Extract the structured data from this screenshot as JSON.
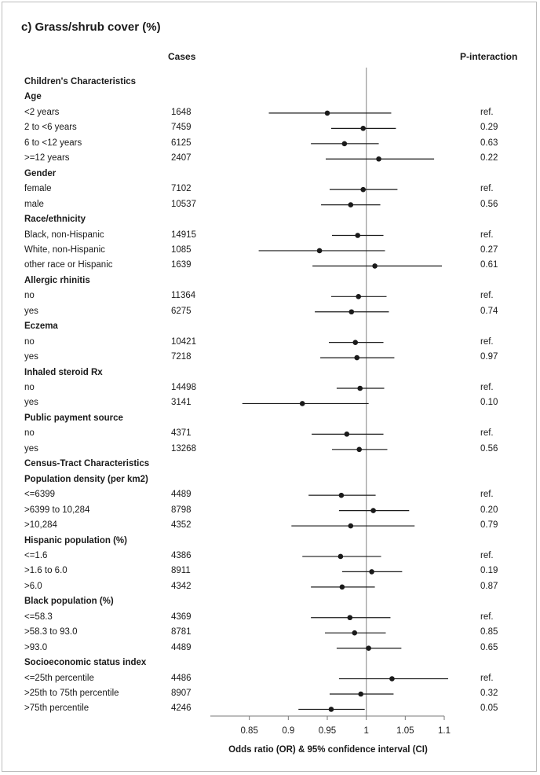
{
  "chart_data": {
    "type": "forest",
    "title": "c) Grass/shrub cover (%)",
    "column_headers": {
      "cases": "Cases",
      "p_interaction": "P-interaction"
    },
    "xlabel": "Odds ratio (OR) & 95% confidence interval (CI)",
    "xlim": [
      0.8,
      1.1
    ],
    "reference_line": 1,
    "xticks": [
      0.85,
      0.9,
      0.95,
      1,
      1.05,
      1.1
    ],
    "xtick_labels": [
      "0.85",
      "0.9",
      "0.95",
      "1",
      "1.05",
      "1.1"
    ],
    "rows": [
      {
        "label": "Children's Characteristics",
        "kind": "section"
      },
      {
        "label": "Age",
        "kind": "group"
      },
      {
        "label": "<2 years",
        "cases": "1648",
        "or": 0.95,
        "lo": 0.875,
        "hi": 1.032,
        "p": "ref."
      },
      {
        "label": "2 to <6 years",
        "cases": "7459",
        "or": 0.996,
        "lo": 0.955,
        "hi": 1.038,
        "p": "0.29"
      },
      {
        "label": "6 to <12 years",
        "cases": "6125",
        "or": 0.972,
        "lo": 0.929,
        "hi": 1.016,
        "p": "0.63"
      },
      {
        "label": ">=12 years",
        "cases": "2407",
        "or": 1.016,
        "lo": 0.948,
        "hi": 1.087,
        "p": "0.22"
      },
      {
        "label": "Gender",
        "kind": "group"
      },
      {
        "label": "female",
        "cases": "7102",
        "or": 0.996,
        "lo": 0.953,
        "hi": 1.04,
        "p": "ref."
      },
      {
        "label": "male",
        "cases": "10537",
        "or": 0.98,
        "lo": 0.942,
        "hi": 1.018,
        "p": "0.56"
      },
      {
        "label": "Race/ethnicity",
        "kind": "group"
      },
      {
        "label": "Black, non-Hispanic",
        "cases": "14915",
        "or": 0.989,
        "lo": 0.956,
        "hi": 1.022,
        "p": "ref."
      },
      {
        "label": "White, non-Hispanic",
        "cases": "1085",
        "or": 0.94,
        "lo": 0.862,
        "hi": 1.024,
        "p": "0.27"
      },
      {
        "label": "other race or Hispanic",
        "cases": "1639",
        "or": 1.011,
        "lo": 0.931,
        "hi": 1.097,
        "p": "0.61"
      },
      {
        "label": "Allergic rhinitis",
        "kind": "group"
      },
      {
        "label": "no",
        "cases": "11364",
        "or": 0.99,
        "lo": 0.955,
        "hi": 1.026,
        "p": "ref."
      },
      {
        "label": "yes",
        "cases": "6275",
        "or": 0.981,
        "lo": 0.934,
        "hi": 1.029,
        "p": "0.74"
      },
      {
        "label": "Eczema",
        "kind": "group"
      },
      {
        "label": "no",
        "cases": "10421",
        "or": 0.986,
        "lo": 0.952,
        "hi": 1.022,
        "p": "ref."
      },
      {
        "label": "yes",
        "cases": "7218",
        "or": 0.988,
        "lo": 0.941,
        "hi": 1.036,
        "p": "0.97"
      },
      {
        "label": "Inhaled steroid Rx",
        "kind": "group"
      },
      {
        "label": "no",
        "cases": "14498",
        "or": 0.992,
        "lo": 0.962,
        "hi": 1.023,
        "p": "ref."
      },
      {
        "label": "yes",
        "cases": "3141",
        "or": 0.918,
        "lo": 0.841,
        "hi": 1.003,
        "p": "0.10"
      },
      {
        "label": "Public payment source",
        "kind": "group"
      },
      {
        "label": "no",
        "cases": "4371",
        "or": 0.975,
        "lo": 0.93,
        "hi": 1.022,
        "p": "ref."
      },
      {
        "label": "yes",
        "cases": "13268",
        "or": 0.991,
        "lo": 0.956,
        "hi": 1.027,
        "p": "0.56"
      },
      {
        "label": "Census-Tract Characteristics",
        "kind": "section"
      },
      {
        "label": "Population density (per km2)",
        "kind": "group"
      },
      {
        "label": "<=6399",
        "cases": "4489",
        "or": 0.968,
        "lo": 0.926,
        "hi": 1.012,
        "p": "ref."
      },
      {
        "label": ">6399 to 10,284",
        "cases": "8798",
        "or": 1.009,
        "lo": 0.965,
        "hi": 1.055,
        "p": "0.20"
      },
      {
        "label": ">10,284",
        "cases": "4352",
        "or": 0.98,
        "lo": 0.904,
        "hi": 1.062,
        "p": "0.79"
      },
      {
        "label": "Hispanic population (%)",
        "kind": "group"
      },
      {
        "label": "<=1.6",
        "cases": "4386",
        "or": 0.967,
        "lo": 0.918,
        "hi": 1.019,
        "p": "ref."
      },
      {
        "label": ">1.6 to 6.0",
        "cases": "8911",
        "or": 1.007,
        "lo": 0.969,
        "hi": 1.046,
        "p": "0.19"
      },
      {
        "label": ">6.0",
        "cases": "4342",
        "or": 0.969,
        "lo": 0.929,
        "hi": 1.011,
        "p": "0.87"
      },
      {
        "label": "Black population (%)",
        "kind": "group"
      },
      {
        "label": "<=58.3",
        "cases": "4369",
        "or": 0.979,
        "lo": 0.929,
        "hi": 1.031,
        "p": "ref."
      },
      {
        "label": ">58.3 to 93.0",
        "cases": "8781",
        "or": 0.985,
        "lo": 0.947,
        "hi": 1.025,
        "p": "0.85"
      },
      {
        "label": ">93.0",
        "cases": "4489",
        "or": 1.003,
        "lo": 0.962,
        "hi": 1.045,
        "p": "0.65"
      },
      {
        "label": "Socioeconomic status index",
        "kind": "group"
      },
      {
        "label": "<=25th percentile",
        "cases": "4486",
        "or": 1.033,
        "lo": 0.965,
        "hi": 1.105,
        "p": "ref."
      },
      {
        "label": ">25th to 75th percentile",
        "cases": "8907",
        "or": 0.993,
        "lo": 0.953,
        "hi": 1.035,
        "p": "0.32"
      },
      {
        "label": ">75th percentile",
        "cases": "4246",
        "or": 0.955,
        "lo": 0.913,
        "hi": 0.998,
        "p": "0.05"
      }
    ]
  },
  "colors": {
    "marker": "#1a1a1a",
    "ref_line": "#9e9e9e",
    "axis": "#7a7a7a"
  }
}
